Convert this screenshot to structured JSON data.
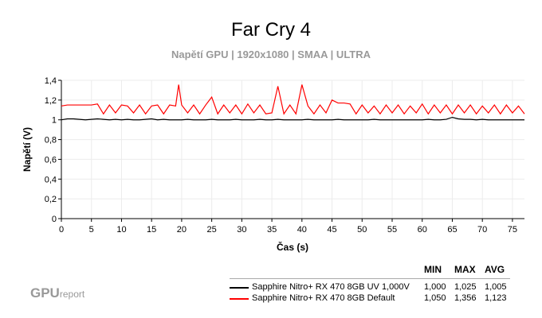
{
  "chart_data": {
    "type": "line",
    "title": "Far Cry 4",
    "subtitle": "Napětí GPU | 1920x1080 | SMAA | ULTRA",
    "xlabel": "Čas (s)",
    "ylabel": "Napětí (V)",
    "xlim": [
      0,
      77
    ],
    "ylim": [
      0,
      1.4
    ],
    "xticks": [
      "0",
      "5",
      "10",
      "15",
      "20",
      "25",
      "30",
      "35",
      "40",
      "45",
      "50",
      "55",
      "60",
      "65",
      "70",
      "75"
    ],
    "yticks": [
      "0",
      "0,2",
      "0,4",
      "0,6",
      "0,8",
      "1",
      "1,2",
      "1,4"
    ],
    "grid": true,
    "legend_position": "bottom-right",
    "x": [
      0,
      1,
      2,
      3,
      4,
      5,
      6,
      7,
      8,
      9,
      10,
      11,
      12,
      13,
      14,
      15,
      16,
      17,
      18,
      19,
      19.5,
      20,
      21,
      22,
      23,
      24,
      25,
      26,
      27,
      28,
      29,
      30,
      31,
      32,
      33,
      34,
      35,
      36,
      37,
      38,
      39,
      40,
      41,
      42,
      43,
      44,
      45,
      46,
      47,
      48,
      49,
      50,
      51,
      52,
      53,
      54,
      55,
      56,
      57,
      58,
      59,
      60,
      61,
      62,
      63,
      64,
      65,
      66,
      67,
      68,
      69,
      70,
      71,
      72,
      73,
      74,
      75,
      76,
      77
    ],
    "series": [
      {
        "name": "Sapphire Nitro+ RX 470 8GB UV 1,000V",
        "color": "#000000",
        "min": "1,000",
        "max": "1,025",
        "avg": "1,005",
        "values": [
          1.0,
          1.01,
          1.01,
          1.005,
          1.0,
          1.005,
          1.01,
          1.005,
          1.0,
          1.005,
          1.0,
          1.005,
          1.0,
          1.0,
          1.005,
          1.01,
          1.0,
          1.005,
          1.0,
          1.0,
          1.0,
          1.0,
          1.005,
          1.0,
          1.0,
          1.0,
          1.005,
          1.0,
          1.0,
          1.0,
          1.005,
          1.0,
          1.0,
          1.0,
          1.005,
          1.0,
          1.0,
          1.005,
          1.0,
          1.0,
          1.0,
          1.0,
          1.005,
          1.0,
          1.0,
          1.0,
          1.0,
          1.005,
          1.0,
          1.0,
          1.0,
          1.0,
          1.0,
          1.005,
          1.0,
          1.0,
          1.0,
          1.0,
          1.0,
          1.0,
          1.0,
          1.0,
          1.005,
          1.0,
          1.0,
          1.005,
          1.025,
          1.01,
          1.005,
          1.005,
          1.0,
          1.005,
          1.0,
          1.0,
          1.0,
          1.0,
          1.0,
          1.0,
          1.0
        ]
      },
      {
        "name": "Sapphire Nitro+ RX 470 8GB Default",
        "color": "#ff0000",
        "min": "1,050",
        "max": "1,356",
        "avg": "1,123",
        "values": [
          1.14,
          1.15,
          1.15,
          1.15,
          1.15,
          1.15,
          1.16,
          1.06,
          1.15,
          1.07,
          1.15,
          1.14,
          1.07,
          1.15,
          1.06,
          1.14,
          1.15,
          1.06,
          1.15,
          1.14,
          1.356,
          1.15,
          1.07,
          1.15,
          1.06,
          1.15,
          1.23,
          1.06,
          1.15,
          1.07,
          1.15,
          1.06,
          1.16,
          1.07,
          1.15,
          1.06,
          1.07,
          1.34,
          1.06,
          1.15,
          1.06,
          1.356,
          1.14,
          1.06,
          1.15,
          1.07,
          1.2,
          1.17,
          1.17,
          1.16,
          1.06,
          1.15,
          1.07,
          1.14,
          1.06,
          1.15,
          1.07,
          1.15,
          1.06,
          1.14,
          1.07,
          1.16,
          1.06,
          1.15,
          1.07,
          1.15,
          1.06,
          1.15,
          1.07,
          1.15,
          1.06,
          1.14,
          1.07,
          1.15,
          1.06,
          1.15,
          1.07,
          1.14,
          1.06
        ]
      }
    ]
  },
  "logo": {
    "main": "GPU",
    "small": "report"
  },
  "legend": {
    "min_label": "MIN",
    "max_label": "MAX",
    "avg_label": "AVG"
  }
}
